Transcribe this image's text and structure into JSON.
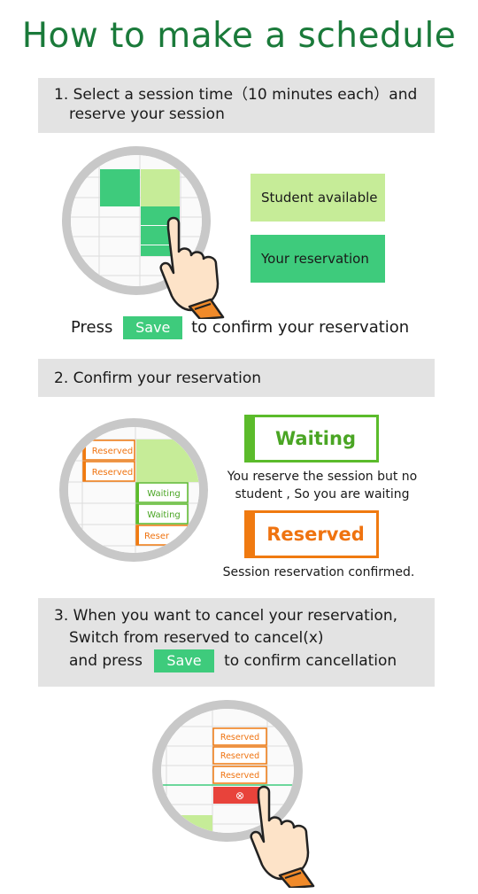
{
  "title": "How to make a schedule",
  "step1": {
    "line1": "1. Select a session time（10 minutes each）and",
    "line2": "reserve your session",
    "legend_available": "Student available",
    "legend_reservation": "Your reservation",
    "press_prefix": "Press",
    "save_label": "Save",
    "press_suffix": "to confirm your reservation"
  },
  "step2": {
    "heading": "2. Confirm your reservation",
    "cell_reserved": "Reserved",
    "cell_waiting": "Waiting",
    "cell_reserved_partial": "Reser",
    "waiting_label": "Waiting",
    "waiting_caption_1": "You reserve the session but no",
    "waiting_caption_2": "student , So you are waiting",
    "reserved_label": "Reserved",
    "reserved_caption": "Session reservation confirmed."
  },
  "step3": {
    "line1": "3. When you want to cancel your reservation,",
    "line2": "Switch from reserved to cancel(x)",
    "line3_prefix": "and press",
    "save_label": "Save",
    "line3_suffix": "to confirm cancellation",
    "cell_reserved": "Reserved",
    "cancel_icon": "⊗"
  },
  "colors": {
    "title_green": "#1a7a3a",
    "available_green": "#c6ec98",
    "reservation_green": "#3ecb7c",
    "waiting_green": "#5bbb2b",
    "reserved_orange": "#f07a10",
    "cancel_red": "#e8433b",
    "bar_gray": "#e3e3e3"
  }
}
